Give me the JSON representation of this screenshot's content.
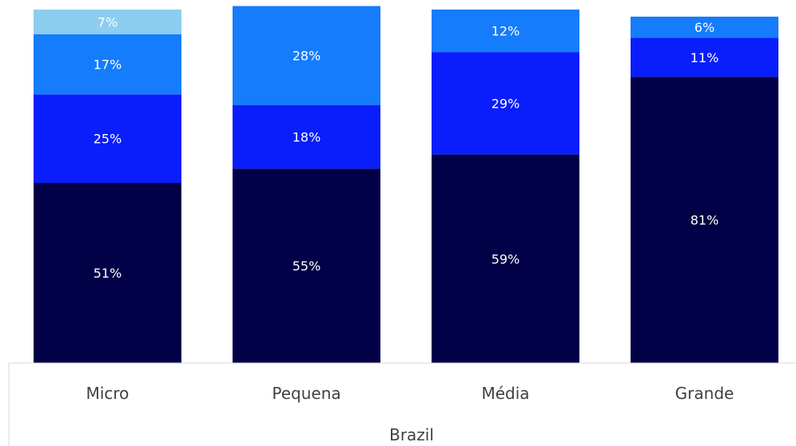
{
  "chart_data": {
    "type": "bar",
    "stacked": true,
    "categories": [
      "Micro",
      "Pequena",
      "Média",
      "Grande"
    ],
    "group_label": "Brazil",
    "series": [
      {
        "values": [
          51,
          55,
          59,
          81
        ],
        "color": "#020046"
      },
      {
        "values": [
          25,
          18,
          29,
          11
        ],
        "color": "#0a1dfd"
      },
      {
        "values": [
          17,
          28,
          12,
          6
        ],
        "color": "#157cfb"
      },
      {
        "values": [
          7,
          0,
          0,
          0
        ],
        "color": "#8ccdf0"
      }
    ],
    "value_labels": [
      [
        "51%",
        "25%",
        "17%",
        "7%"
      ],
      [
        "55%",
        "18%",
        "28%",
        ""
      ],
      [
        "59%",
        "29%",
        "12%",
        ""
      ],
      [
        "81%",
        "11%",
        "6%",
        ""
      ]
    ],
    "ylim": [
      0,
      100
    ],
    "grid": false,
    "legend": "none"
  }
}
